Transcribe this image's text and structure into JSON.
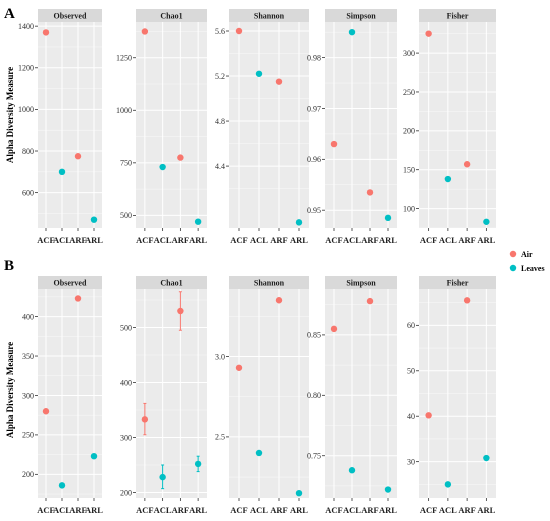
{
  "colors": {
    "Air": "#F8766D",
    "Leaves": "#00BFC4",
    "panel_bg": "#EBEBEB",
    "strip_bg": "#D9D9D9",
    "grid": "#FFFFFF",
    "errorbar": "#F8766D"
  },
  "legend": {
    "entries": [
      "Air",
      "Leaves"
    ]
  },
  "chart_data": [
    {
      "panel": "A",
      "type": "scatter",
      "ylabel": "Alpha Diversity Measure",
      "facets": [
        {
          "title": "Observed",
          "ylim": [
            430,
            1420
          ],
          "ticks": [
            600,
            800,
            1000,
            1200,
            1400
          ],
          "tick_labels": [
            "600",
            "800",
            "1000",
            "1200",
            "1400"
          ],
          "categories": [
            "ACF",
            "ACL",
            "ARF",
            "ARL"
          ],
          "groups": [
            "Air",
            "Leaves",
            "Air",
            "Leaves"
          ],
          "values": [
            1370,
            700,
            775,
            470
          ]
        },
        {
          "title": "Chao1",
          "ylim": [
            440,
            1420
          ],
          "ticks": [
            500,
            750,
            1000,
            1250
          ],
          "tick_labels": [
            "500",
            "750",
            "1000",
            "1250"
          ],
          "categories": [
            "ACF",
            "ACL",
            "ARF",
            "ARL"
          ],
          "groups": [
            "Air",
            "Leaves",
            "Air",
            "Leaves"
          ],
          "values": [
            1375,
            730,
            775,
            470
          ]
        },
        {
          "title": "Shannon",
          "ylim": [
            3.85,
            5.68
          ],
          "ticks": [
            4.4,
            4.8,
            5.2,
            5.6
          ],
          "tick_labels": [
            "4.4",
            "4.8",
            "5.2",
            "5.6"
          ],
          "categories": [
            "ACF",
            "ACL",
            "ARF",
            "ARL"
          ],
          "groups": [
            "Air",
            "Leaves",
            "Air",
            "Leaves"
          ],
          "values": [
            5.6,
            5.22,
            5.15,
            3.9
          ]
        },
        {
          "title": "Simpson",
          "ylim": [
            0.9465,
            0.987
          ],
          "ticks": [
            0.95,
            0.96,
            0.97,
            0.98
          ],
          "tick_labels": [
            "0.95",
            "0.96",
            "0.97",
            "0.98"
          ],
          "categories": [
            "ACF",
            "ACL",
            "ARF",
            "ARL"
          ],
          "groups": [
            "Air",
            "Leaves",
            "Air",
            "Leaves"
          ],
          "values": [
            0.963,
            0.985,
            0.9535,
            0.9485
          ]
        },
        {
          "title": "Fisher",
          "ylim": [
            75,
            340
          ],
          "ticks": [
            100,
            150,
            200,
            250,
            300
          ],
          "tick_labels": [
            "100",
            "150",
            "200",
            "250",
            "300"
          ],
          "categories": [
            "ACF",
            "ACL",
            "ARF",
            "ARL"
          ],
          "groups": [
            "Air",
            "Leaves",
            "Air",
            "Leaves"
          ],
          "values": [
            325,
            138,
            157,
            83
          ]
        }
      ]
    },
    {
      "panel": "B",
      "type": "scatter",
      "ylabel": "Alpha Diversity Measure",
      "facets": [
        {
          "title": "Observed",
          "ylim": [
            170,
            435
          ],
          "ticks": [
            200,
            250,
            300,
            350,
            400
          ],
          "tick_labels": [
            "200",
            "250",
            "300",
            "350",
            "400"
          ],
          "categories": [
            "ACF",
            "ACL",
            "ARF",
            "ARL"
          ],
          "groups": [
            "Air",
            "Leaves",
            "Air",
            "Leaves"
          ],
          "values": [
            280,
            186,
            423,
            223
          ]
        },
        {
          "title": "Chao1",
          "ylim": [
            190,
            570
          ],
          "ticks": [
            200,
            300,
            400,
            500
          ],
          "tick_labels": [
            "200",
            "300",
            "400",
            "500"
          ],
          "categories": [
            "ACF",
            "ACL",
            "ARF",
            "ARL"
          ],
          "groups": [
            "Air",
            "Leaves",
            "Air",
            "Leaves"
          ],
          "values": [
            333,
            228,
            530,
            252
          ],
          "errors": [
            [
              305,
              362
            ],
            [
              207,
              250
            ],
            [
              495,
              565
            ],
            [
              238,
              266
            ]
          ]
        },
        {
          "title": "Shannon",
          "ylim": [
            2.12,
            3.42
          ],
          "ticks": [
            2.5,
            3.0
          ],
          "tick_labels": [
            "2.5",
            "3.0"
          ],
          "categories": [
            "ACF",
            "ACL",
            "ARF",
            "ARL"
          ],
          "groups": [
            "Air",
            "Leaves",
            "Air",
            "Leaves"
          ],
          "values": [
            2.93,
            2.4,
            3.35,
            2.15
          ]
        },
        {
          "title": "Simpson",
          "ylim": [
            0.715,
            0.888
          ],
          "ticks": [
            0.75,
            0.8,
            0.85
          ],
          "tick_labels": [
            "0.75",
            "0.80",
            "0.85"
          ],
          "categories": [
            "ACF",
            "ACL",
            "ARF",
            "ARL"
          ],
          "groups": [
            "Air",
            "Leaves",
            "Air",
            "Leaves"
          ],
          "values": [
            0.855,
            0.738,
            0.878,
            0.722
          ]
        },
        {
          "title": "Fisher",
          "ylim": [
            22,
            68
          ],
          "ticks": [
            30,
            40,
            50,
            60
          ],
          "tick_labels": [
            "30",
            "40",
            "50",
            "60"
          ],
          "categories": [
            "ACF",
            "ACL",
            "ARF",
            "ARL"
          ],
          "groups": [
            "Air",
            "Leaves",
            "Air",
            "Leaves"
          ],
          "values": [
            40.2,
            25,
            65.5,
            30.8
          ]
        }
      ]
    }
  ]
}
